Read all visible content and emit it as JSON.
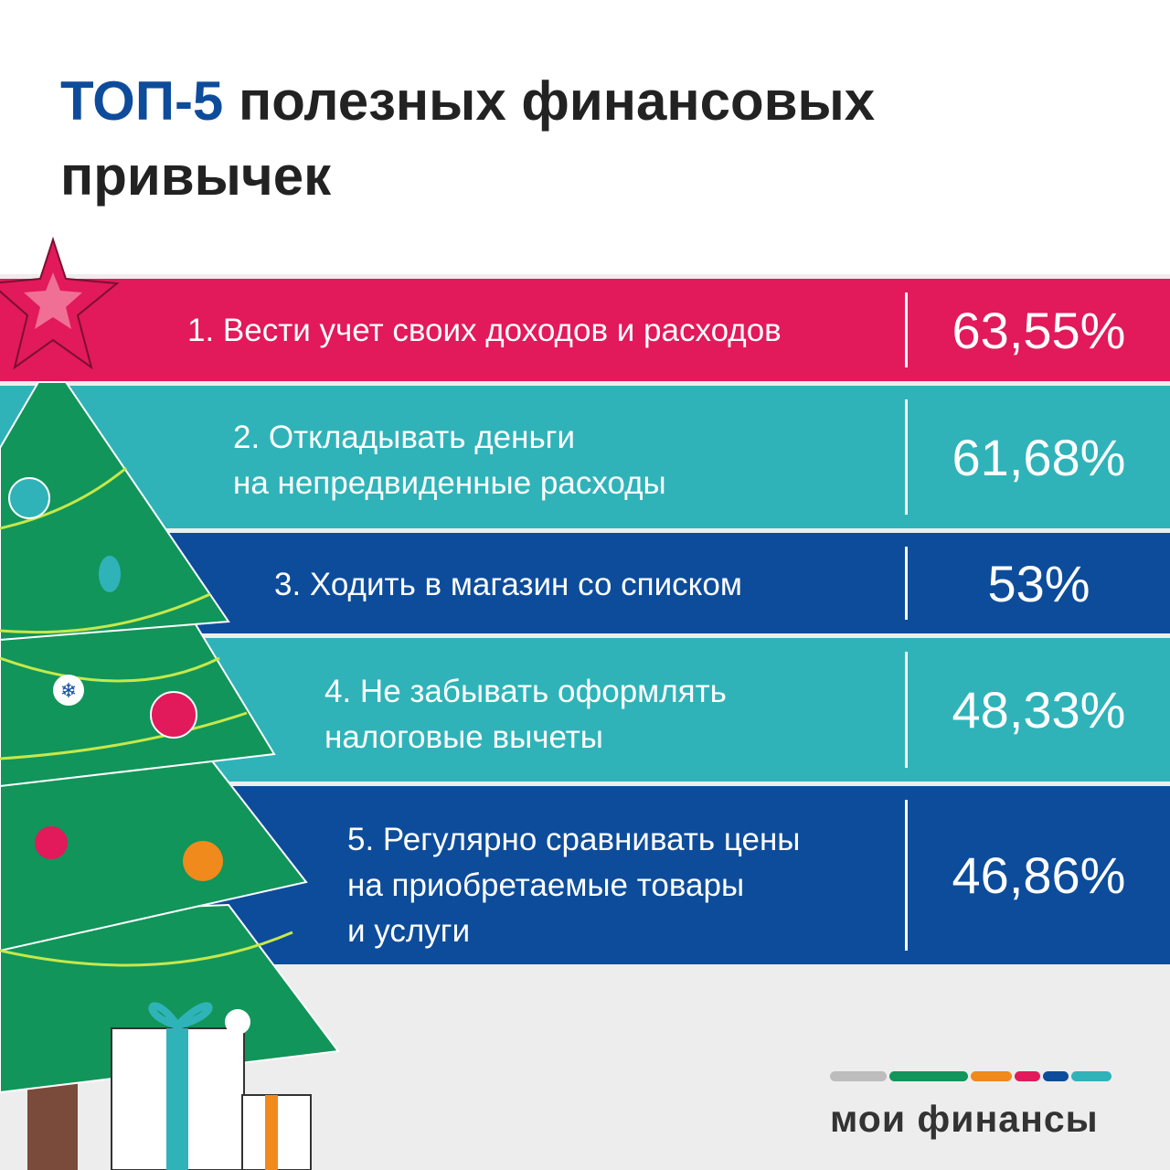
{
  "title": {
    "highlight": "ТОП-5",
    "rest_line1": " полезных финансовых",
    "line2": "привычек"
  },
  "habits": [
    {
      "lines": [
        "1. Вести учет своих доходов и расходов"
      ],
      "value": "63,55%",
      "color": "#e2195b"
    },
    {
      "lines": [
        "2. Откладывать деньги",
        "на непредвиденные расходы"
      ],
      "value": "61,68%",
      "color": "#2fb3b9"
    },
    {
      "lines": [
        "3. Ходить в магазин со списком"
      ],
      "value": "53%",
      "color": "#0d4c9b"
    },
    {
      "lines": [
        "4. Не забывать оформлять",
        "налоговые вычеты"
      ],
      "value": "48,33%",
      "color": "#2fb3b9"
    },
    {
      "lines": [
        "5. Регулярно сравнивать цены",
        "на приобретаемые товары",
        "и услуги"
      ],
      "value": "46,86%",
      "color": "#0d4c9b"
    }
  ],
  "logo": {
    "name": "мои финансы",
    "colors": [
      "#bdbdbd",
      "#11955a",
      "#f08a1c",
      "#e2195b",
      "#0d4c9b",
      "#2fb3b9"
    ]
  }
}
